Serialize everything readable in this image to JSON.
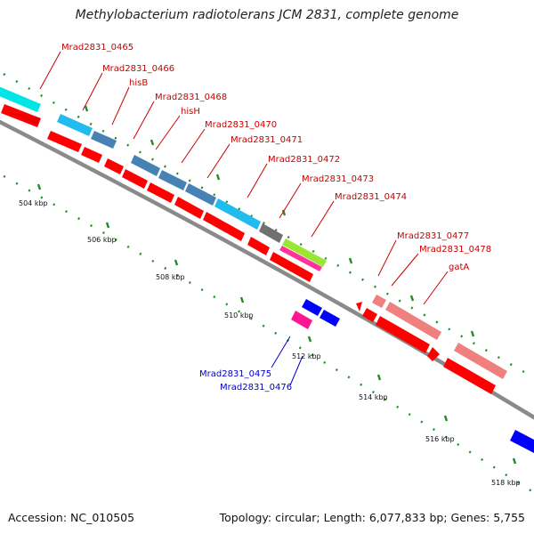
{
  "title": "Methylobacterium radiotolerans JCM 2831, complete genome",
  "footer": {
    "accession": "Accession: NC_010505",
    "summary": "Topology: circular; Length: 6,077,833 bp; Genes: 5,755"
  },
  "colors": {
    "backbone": "#8a8a8a",
    "cds": "#ff0000",
    "label_forward": "#cc0000",
    "label_reverse": "#0000cc",
    "ticks": "#228b22"
  },
  "ticks": [
    "504 kbp",
    "506 kbp",
    "508 kbp",
    "510 kbp",
    "512 kbp",
    "514 kbp",
    "516 kbp",
    "518 kbp"
  ],
  "genes_forward": [
    {
      "label": "Mrad2831_0465",
      "color": "#00e5e5"
    },
    {
      "label": "Mrad2831_0466",
      "color": "#22bbee"
    },
    {
      "label": "hisB",
      "color": "#4682b4"
    },
    {
      "label": "Mrad2831_0468",
      "color": "#4682b4"
    },
    {
      "label": "hisH",
      "color": "#4682b4"
    },
    {
      "label": "Mrad2831_0470",
      "color": "#4682b4"
    },
    {
      "label": "Mrad2831_0471",
      "color": "#22bbee"
    },
    {
      "label": "Mrad2831_0472",
      "color": "#707070"
    },
    {
      "label": "Mrad2831_0473",
      "color": "#99e633"
    },
    {
      "label": "Mrad2831_0474",
      "color": "#ff3399"
    },
    {
      "label": "Mrad2831_0477",
      "color": "#ff0000"
    },
    {
      "label": "Mrad2831_0478",
      "color": "#f08080"
    },
    {
      "label": "gatA",
      "color": "#f08080"
    }
  ],
  "genes_reverse": [
    {
      "label": "Mrad2831_0475",
      "color": "#ff1493"
    },
    {
      "label": "Mrad2831_0476",
      "color": "#0000ff"
    }
  ]
}
